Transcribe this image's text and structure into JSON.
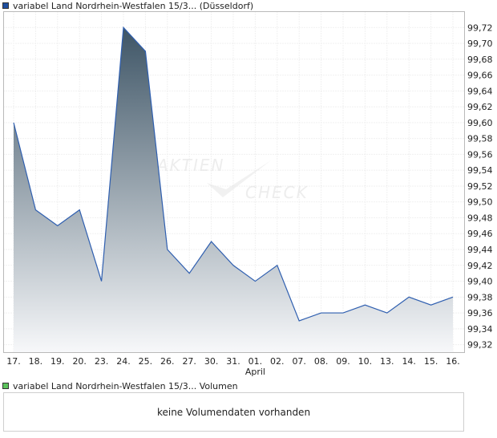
{
  "legend": {
    "price_label": "variabel Land Nordrhein-Westfalen 15/3... (Düsseldorf)",
    "price_color": "#1f4fa0",
    "volume_label": "variabel Land Nordrhein-Westfalen 15/3... Volumen",
    "volume_color": "#5cc35c"
  },
  "watermark": {
    "line1": "AKTIEN",
    "line2": "CHECK"
  },
  "volume": {
    "message": "keine Volumendaten vorhanden"
  },
  "chart_data": {
    "type": "area",
    "title": "",
    "xlabel": "",
    "ylabel": "",
    "x": [
      "17.",
      "18.",
      "19.",
      "20.",
      "23.",
      "24.",
      "25.",
      "26.",
      "27.",
      "30.",
      "31.",
      "01.",
      "02.",
      "07.",
      "08.",
      "09.",
      "10.",
      "13.",
      "14.",
      "15.",
      "16."
    ],
    "x_month_marker": {
      "at": "01.",
      "label": "April"
    },
    "series": [
      {
        "values": [
          99.6,
          99.49,
          99.47,
          99.49,
          99.4,
          99.72,
          99.69,
          99.44,
          99.41,
          99.45,
          99.42,
          99.4,
          99.42,
          99.35,
          99.36,
          99.36,
          99.37,
          99.36,
          99.38,
          99.37,
          99.38
        ]
      }
    ],
    "yticks": [
      "99,32",
      "99,34",
      "99,36",
      "99,38",
      "99,40",
      "99,42",
      "99,44",
      "99,46",
      "99,48",
      "99,50",
      "99,52",
      "99,54",
      "99,56",
      "99,58",
      "99,60",
      "99,62",
      "99,64",
      "99,66",
      "99,68",
      "99,70",
      "99,72"
    ],
    "ylim": [
      99.31,
      99.74
    ],
    "y_axis_side": "right",
    "grid": true,
    "line_color": "#2f5fb0",
    "fill_top_color": "#3e5566",
    "fill_bottom_color": "#f7f8fa",
    "legend_position": "top-left"
  }
}
